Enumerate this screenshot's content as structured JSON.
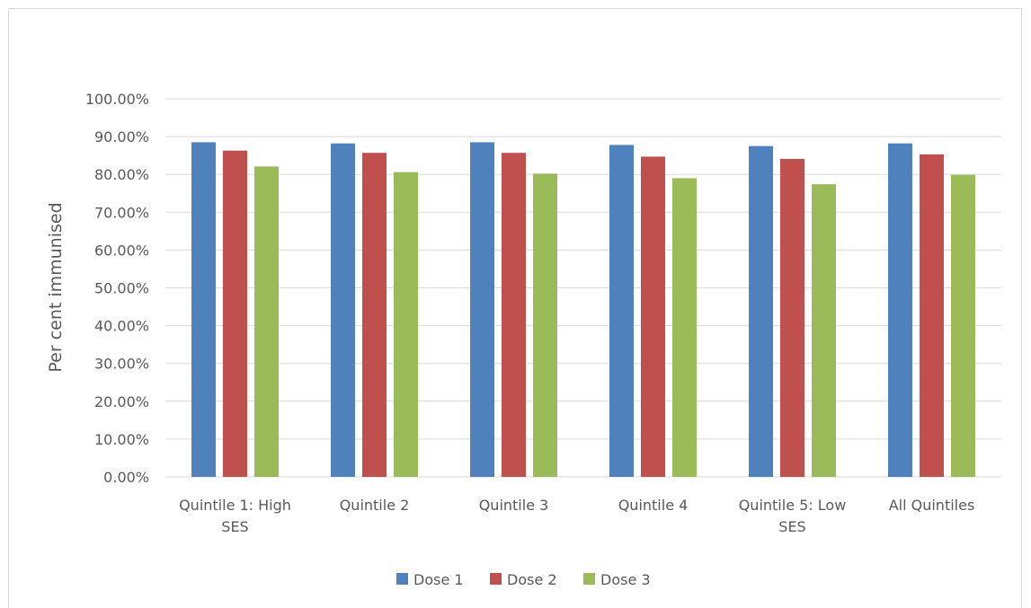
{
  "chart_data": {
    "type": "bar",
    "title": "",
    "xlabel": "",
    "ylabel": "Per cent immunised",
    "ylim": [
      0,
      100
    ],
    "ytick_step": 10,
    "ytick_format": "percent_2dp",
    "grid": true,
    "legend_position": "bottom",
    "categories": [
      [
        "Quintile 1: High",
        "SES"
      ],
      [
        "Quintile 2"
      ],
      [
        "Quintile 3"
      ],
      [
        "Quintile 4"
      ],
      [
        "Quintile 5: Low",
        "SES"
      ],
      [
        "All Quintiles"
      ]
    ],
    "series": [
      {
        "name": "Dose 1",
        "color": "#4f81bd",
        "values": [
          88.5,
          88.2,
          88.5,
          87.8,
          87.5,
          88.2
        ]
      },
      {
        "name": "Dose 2",
        "color": "#c0504d",
        "values": [
          86.3,
          85.7,
          85.7,
          84.7,
          84.1,
          85.3
        ]
      },
      {
        "name": "Dose 3",
        "color": "#9bbb59",
        "values": [
          82.1,
          80.6,
          80.2,
          79.0,
          77.4,
          79.9
        ]
      }
    ]
  }
}
